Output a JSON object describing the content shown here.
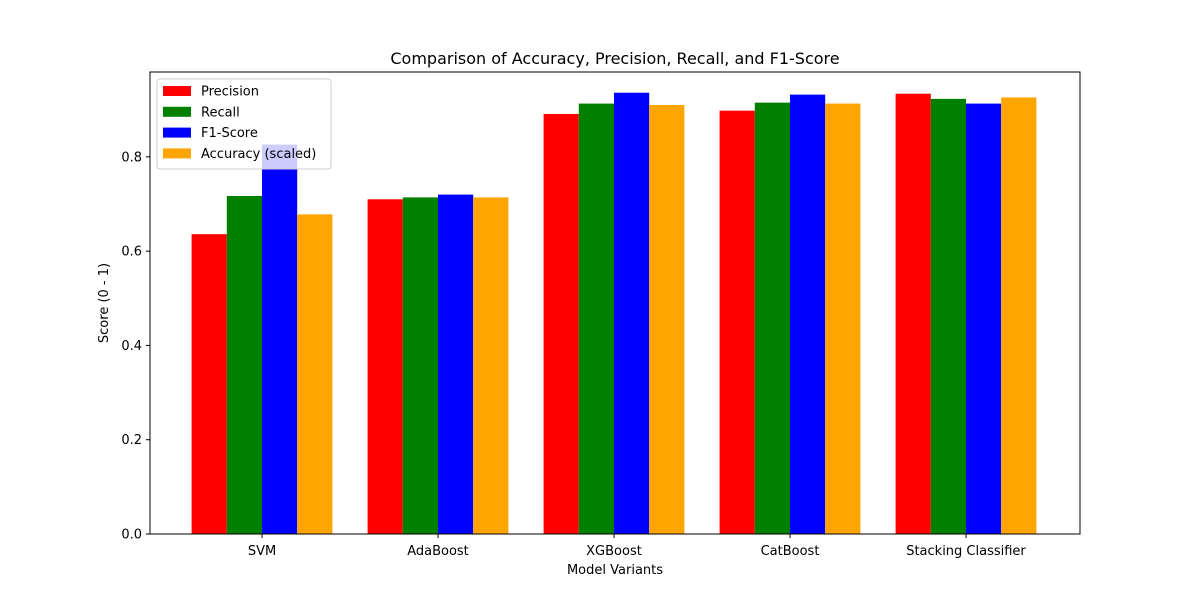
{
  "chart_data": {
    "type": "bar",
    "title": "Comparison of Accuracy, Precision, Recall, and F1-Score",
    "xlabel": "Model Variants",
    "ylabel": "Score (0 - 1)",
    "ylim": [
      0,
      0.98
    ],
    "yticks": [
      "0.0",
      "0.2",
      "0.4",
      "0.6",
      "0.8"
    ],
    "grid": false,
    "legend_position": "top-left",
    "categories": [
      "SVM",
      "AdaBoost",
      "XGBoost",
      "CatBoost",
      "Stacking Classifier"
    ],
    "series": [
      {
        "name": "Precision",
        "color": "#ff0000",
        "values": [
          0.636,
          0.71,
          0.891,
          0.898,
          0.934
        ]
      },
      {
        "name": "Recall",
        "color": "#008000",
        "values": [
          0.717,
          0.714,
          0.913,
          0.915,
          0.923
        ]
      },
      {
        "name": "F1-Score",
        "color": "#0000ff",
        "values": [
          0.826,
          0.72,
          0.936,
          0.932,
          0.913
        ]
      },
      {
        "name": "Accuracy (scaled)",
        "color": "#ffa500",
        "values": [
          0.678,
          0.714,
          0.91,
          0.913,
          0.926
        ]
      }
    ]
  }
}
